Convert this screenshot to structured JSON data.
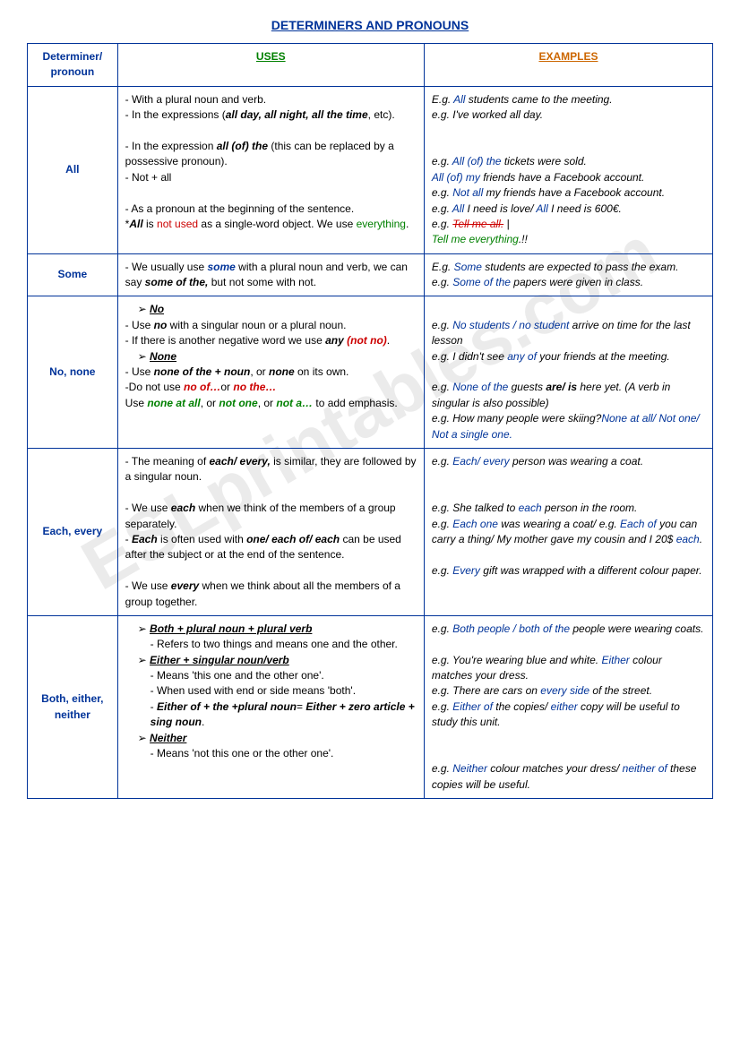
{
  "title": "DETERMINERS AND PRONOUNS",
  "watermark": "ESLprintables.com",
  "headers": {
    "col1": "Determiner/ pronoun",
    "col2": "USES",
    "col3": "EXAMPLES"
  },
  "rows": {
    "all": {
      "det": "All",
      "u1": "- With a plural noun and verb.",
      "u2a": "- In the expressions (",
      "u2b": "all day, all night, all the time",
      "u2c": ", etc).",
      "u3a": "- In the expression ",
      "u3b": "all (of) the",
      "u3c": " (this can be replaced by a possessive pronoun).",
      "u4": "- Not + all",
      "u5": "- As a pronoun at the beginning of the sentence.",
      "u6a": "*",
      "u6b": "All",
      "u6c": " is ",
      "u6d": "not used",
      "u6e": " as a single-word object. We use ",
      "u6f": "everything",
      "u6g": ".",
      "e1a": "E.g. ",
      "e1b": "All",
      "e1c": " students came to the meeting.",
      "e2": "e.g. I've worked all day.",
      "e3a": "e.g. ",
      "e3b": "All (of) the",
      "e3c": " tickets were sold.",
      "e4a": "All (of) my",
      "e4b": " friends have a Facebook account.",
      "e5a": "e.g. ",
      "e5b": "Not all",
      "e5c": " my friends have a Facebook account.",
      "e6a": "e.g. ",
      "e6b": "All",
      "e6c": " I need is love/ ",
      "e6d": "All",
      "e6e": " I need is 600€.",
      "e7a": "e.g. ",
      "e7b": "Tell me all.",
      "e7c": " |",
      "e8a": "Tell me everything",
      "e8b": ".!!"
    },
    "some": {
      "det": "Some",
      "u1a": "- We usually use ",
      "u1b": "some",
      "u1c": " with a plural noun and verb, we can say ",
      "u1d": "some of the,",
      "u1e": " but not some with not.",
      "e1a": "E.g. ",
      "e1b": "Some",
      "e1c": " students are expected to pass the exam.",
      "e2a": "e.g. ",
      "e2b": "Some of the",
      "e2c": " papers were given in class."
    },
    "no": {
      "det": "No, none",
      "h1": "No",
      "u1a": "- Use ",
      "u1b": "no",
      "u1c": " with a singular noun or a plural noun.",
      "u2a": "- If there is another negative word we use ",
      "u2b": "any",
      "u2c": " (not no)",
      "u2d": ".",
      "h2": "None",
      "u3a": "- Use ",
      "u3b": "none of the + noun",
      "u3c": ", or ",
      "u3d": "none",
      "u3e": " on its own.",
      "u4a": "-Do not use ",
      "u4b": "no of…",
      "u4c": "or ",
      "u4d": "no the…",
      "u5a": "Use ",
      "u5b": "none at all",
      "u5c": ", or ",
      "u5d": "not one",
      "u5e": ", or ",
      "u5f": "not a…",
      "u5g": " to add emphasis.",
      "e1a": "e.g. ",
      "e1b": "No students / no student",
      "e1c": " arrive on time for the last lesson",
      "e2a": "e.g. I didn't see ",
      "e2b": "any of",
      "e2c": " your friends at the meeting.",
      "e3a": "e.g. ",
      "e3b": "None of the",
      "e3c": " guests ",
      "e3d": "are/ is",
      "e3e": " here yet. (A verb in singular is also possible)",
      "e4a": "e.g. How many people were skiing?",
      "e4b": "None at all/ Not one/ Not a single one."
    },
    "each": {
      "det": "Each, every",
      "u1a": "- The meaning of ",
      "u1b": "each/ every,",
      "u1c": " is similar, they are followed by a singular noun.",
      "u2a": "- We use ",
      "u2b": "each",
      "u2c": " when we think of the members of a group separately.",
      "u3a": "- ",
      "u3b": "Each",
      "u3c": " is often used with ",
      "u3d": "one/ each of/ each",
      "u3e": " can be used after the subject or at the end of the sentence.",
      "u4a": "- We use ",
      "u4b": "every",
      "u4c": " when we think about all the members of a group together.",
      "e1a": "e.g. ",
      "e1b": "Each/ every",
      "e1c": " person was wearing a coat.",
      "e2a": "e.g. She talked to ",
      "e2b": "each",
      "e2c": " person in the room.",
      "e3a": "e.g. ",
      "e3b": "Each one",
      "e3c": " was wearing a coat/ e.g. ",
      "e3d": "Each of",
      "e3e": " you can carry a thing/ My mother gave my cousin and I 20$ ",
      "e3f": "each",
      "e3g": ".",
      "e4a": "e.g.  ",
      "e4b": "Every",
      "e4c": " gift was wrapped with a different colour paper."
    },
    "both": {
      "det": "Both, either, neither",
      "h1": "Both + plural noun + plural verb",
      "u1": "Refers to two things and means one and the other.",
      "h2": "Either + singular noun/verb",
      "u2": "Means 'this one and the other one'.",
      "u3": "When used with end or side means 'both'.",
      "u4a": "Either of + the +plural noun",
      "u4b": "= ",
      "u4c": "Either + zero article + sing noun",
      "u4d": ".",
      "h3": "Neither",
      "u5": "Means 'not this one or the other one'.",
      "e1a": "e.g. ",
      "e1b": "Both people / both of the",
      "e1c": " people were wearing coats.",
      "e2a": "e.g. You're wearing blue and white. ",
      "e2b": "Either",
      "e2c": " colour matches your dress.",
      "e3a": "e.g. There are cars on ",
      "e3b": "every side",
      "e3c": " of the street.",
      "e4a": "e.g. ",
      "e4b": "Either of",
      "e4c": " the copies/ ",
      "e4d": "either",
      "e4e": " copy will be useful to study this unit.",
      "e5a": "e.g. ",
      "e5b": "Neither",
      "e5c": " colour matches your dress/ ",
      "e5d": "neither of",
      "e5e": " these copies will be useful."
    }
  }
}
